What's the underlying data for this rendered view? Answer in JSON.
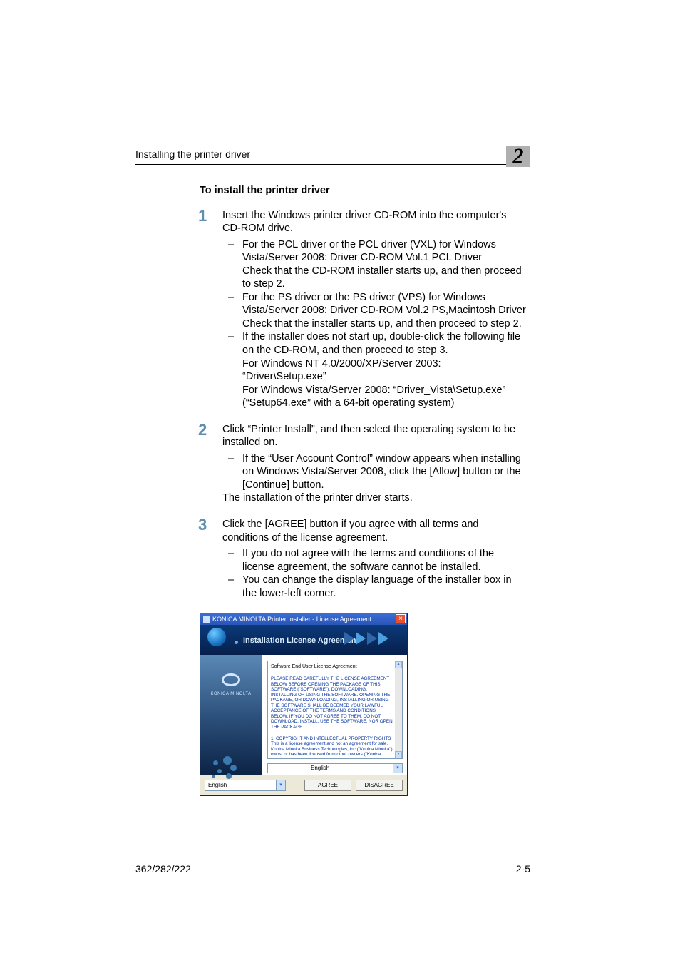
{
  "header": {
    "running": "Installing the printer driver",
    "chapter": "2"
  },
  "section": {
    "heading": "To install the printer driver"
  },
  "steps": [
    {
      "num": "1",
      "lead": "Insert the Windows printer driver CD-ROM into the computer's CD-ROM drive.",
      "items": [
        "For the PCL driver or the PCL driver (VXL) for Windows Vista/Server 2008: Driver CD-ROM Vol.1 PCL Driver\nCheck that the CD-ROM installer starts up, and then proceed to step 2.",
        "For the PS driver or the PS driver (VPS) for Windows Vista/Server 2008: Driver CD-ROM Vol.2 PS,Macintosh Driver\nCheck that the installer starts up, and then proceed to step 2.",
        "If the installer does not start up, double-click the following file on the CD-ROM, and then proceed to step 3.\nFor Windows NT 4.0/2000/XP/Server 2003: “Driver\\Setup.exe”\nFor Windows Vista/Server 2008: “Driver_Vista\\Setup.exe” (“Setup64.exe” with a 64-bit operating system)"
      ],
      "after": ""
    },
    {
      "num": "2",
      "lead": "Click “Printer Install”, and then select the operating system to be installed on.",
      "items": [
        "If the “User Account Control” window appears when installing on Windows Vista/Server 2008, click the [Allow] button or the [Continue] button."
      ],
      "after": "The installation of the printer driver starts."
    },
    {
      "num": "3",
      "lead": "Click the [AGREE] button if you agree with all terms and conditions of the license agreement.",
      "items": [
        "If you do not agree with the terms and conditions of the license agreement, the software cannot be installed.",
        "You can change the display language of the installer box in the lower-left corner."
      ],
      "after": ""
    }
  ],
  "window": {
    "title": "KONICA MINOLTA Printer Installer - License Agreement",
    "banner_title": "Installation License Agreement",
    "brand": "KONICA MINOLTA",
    "eula_heading": "Software End User License Agreement",
    "eula_p1": "PLEASE READ CAREFULLY THE LICENSE AGREEMENT BELOW BEFORE OPENING THE PACKAGE OF THIS SOFTWARE (\"SOFTWARE\"), DOWNLOADING, INSTALLING OR USING THE SOFTWARE. OPENING THE PACKAGE, OR DOWNLOADING, INSTALLING OR USING THE SOFTWARE SHALL BE DEEMED YOUR LAWFUL ACCEPTANCE OF THE TERMS AND CONDITIONS BELOW. IF YOU DO NOT AGREE TO THEM, DO NOT DOWNLOAD, INSTALL, USE THE SOFTWARE, NOR OPEN THE PACKAGE.",
    "eula_p2": "1. COPYRIGHT AND INTELLECTUAL PROPERTY RIGHTS\nThis is a license agreement and not an agreement for sale. Konica Minolta Business Technologies, Inc.(\"Konica Minolta\") owns, or has been licensed from other owners (\"Konica Minolta Licensor\"),",
    "lang_right": "English",
    "lang_left": "English",
    "agree": "AGREE",
    "disagree": "DISAGREE",
    "colors": {
      "titlebar_top": "#3b6ed5",
      "titlebar_bottom": "#2a55b8",
      "close_bg": "#e85030",
      "banner_top": "#0b3a7a",
      "banner_bottom": "#061f4b",
      "banner_text": "#d8ecff",
      "left_grad_top": "#5a88b5",
      "left_grad_mid": "#2a4d78",
      "left_grad_bot": "#0b2345",
      "eula_text": "#0030a0",
      "border": "#7f9db9",
      "footer_bg": "#ece9d8",
      "step_num": "#5c8fb0",
      "chapter_bg": "#b0b0b0"
    }
  },
  "footer": {
    "left": "362/282/222",
    "right": "2-5"
  }
}
